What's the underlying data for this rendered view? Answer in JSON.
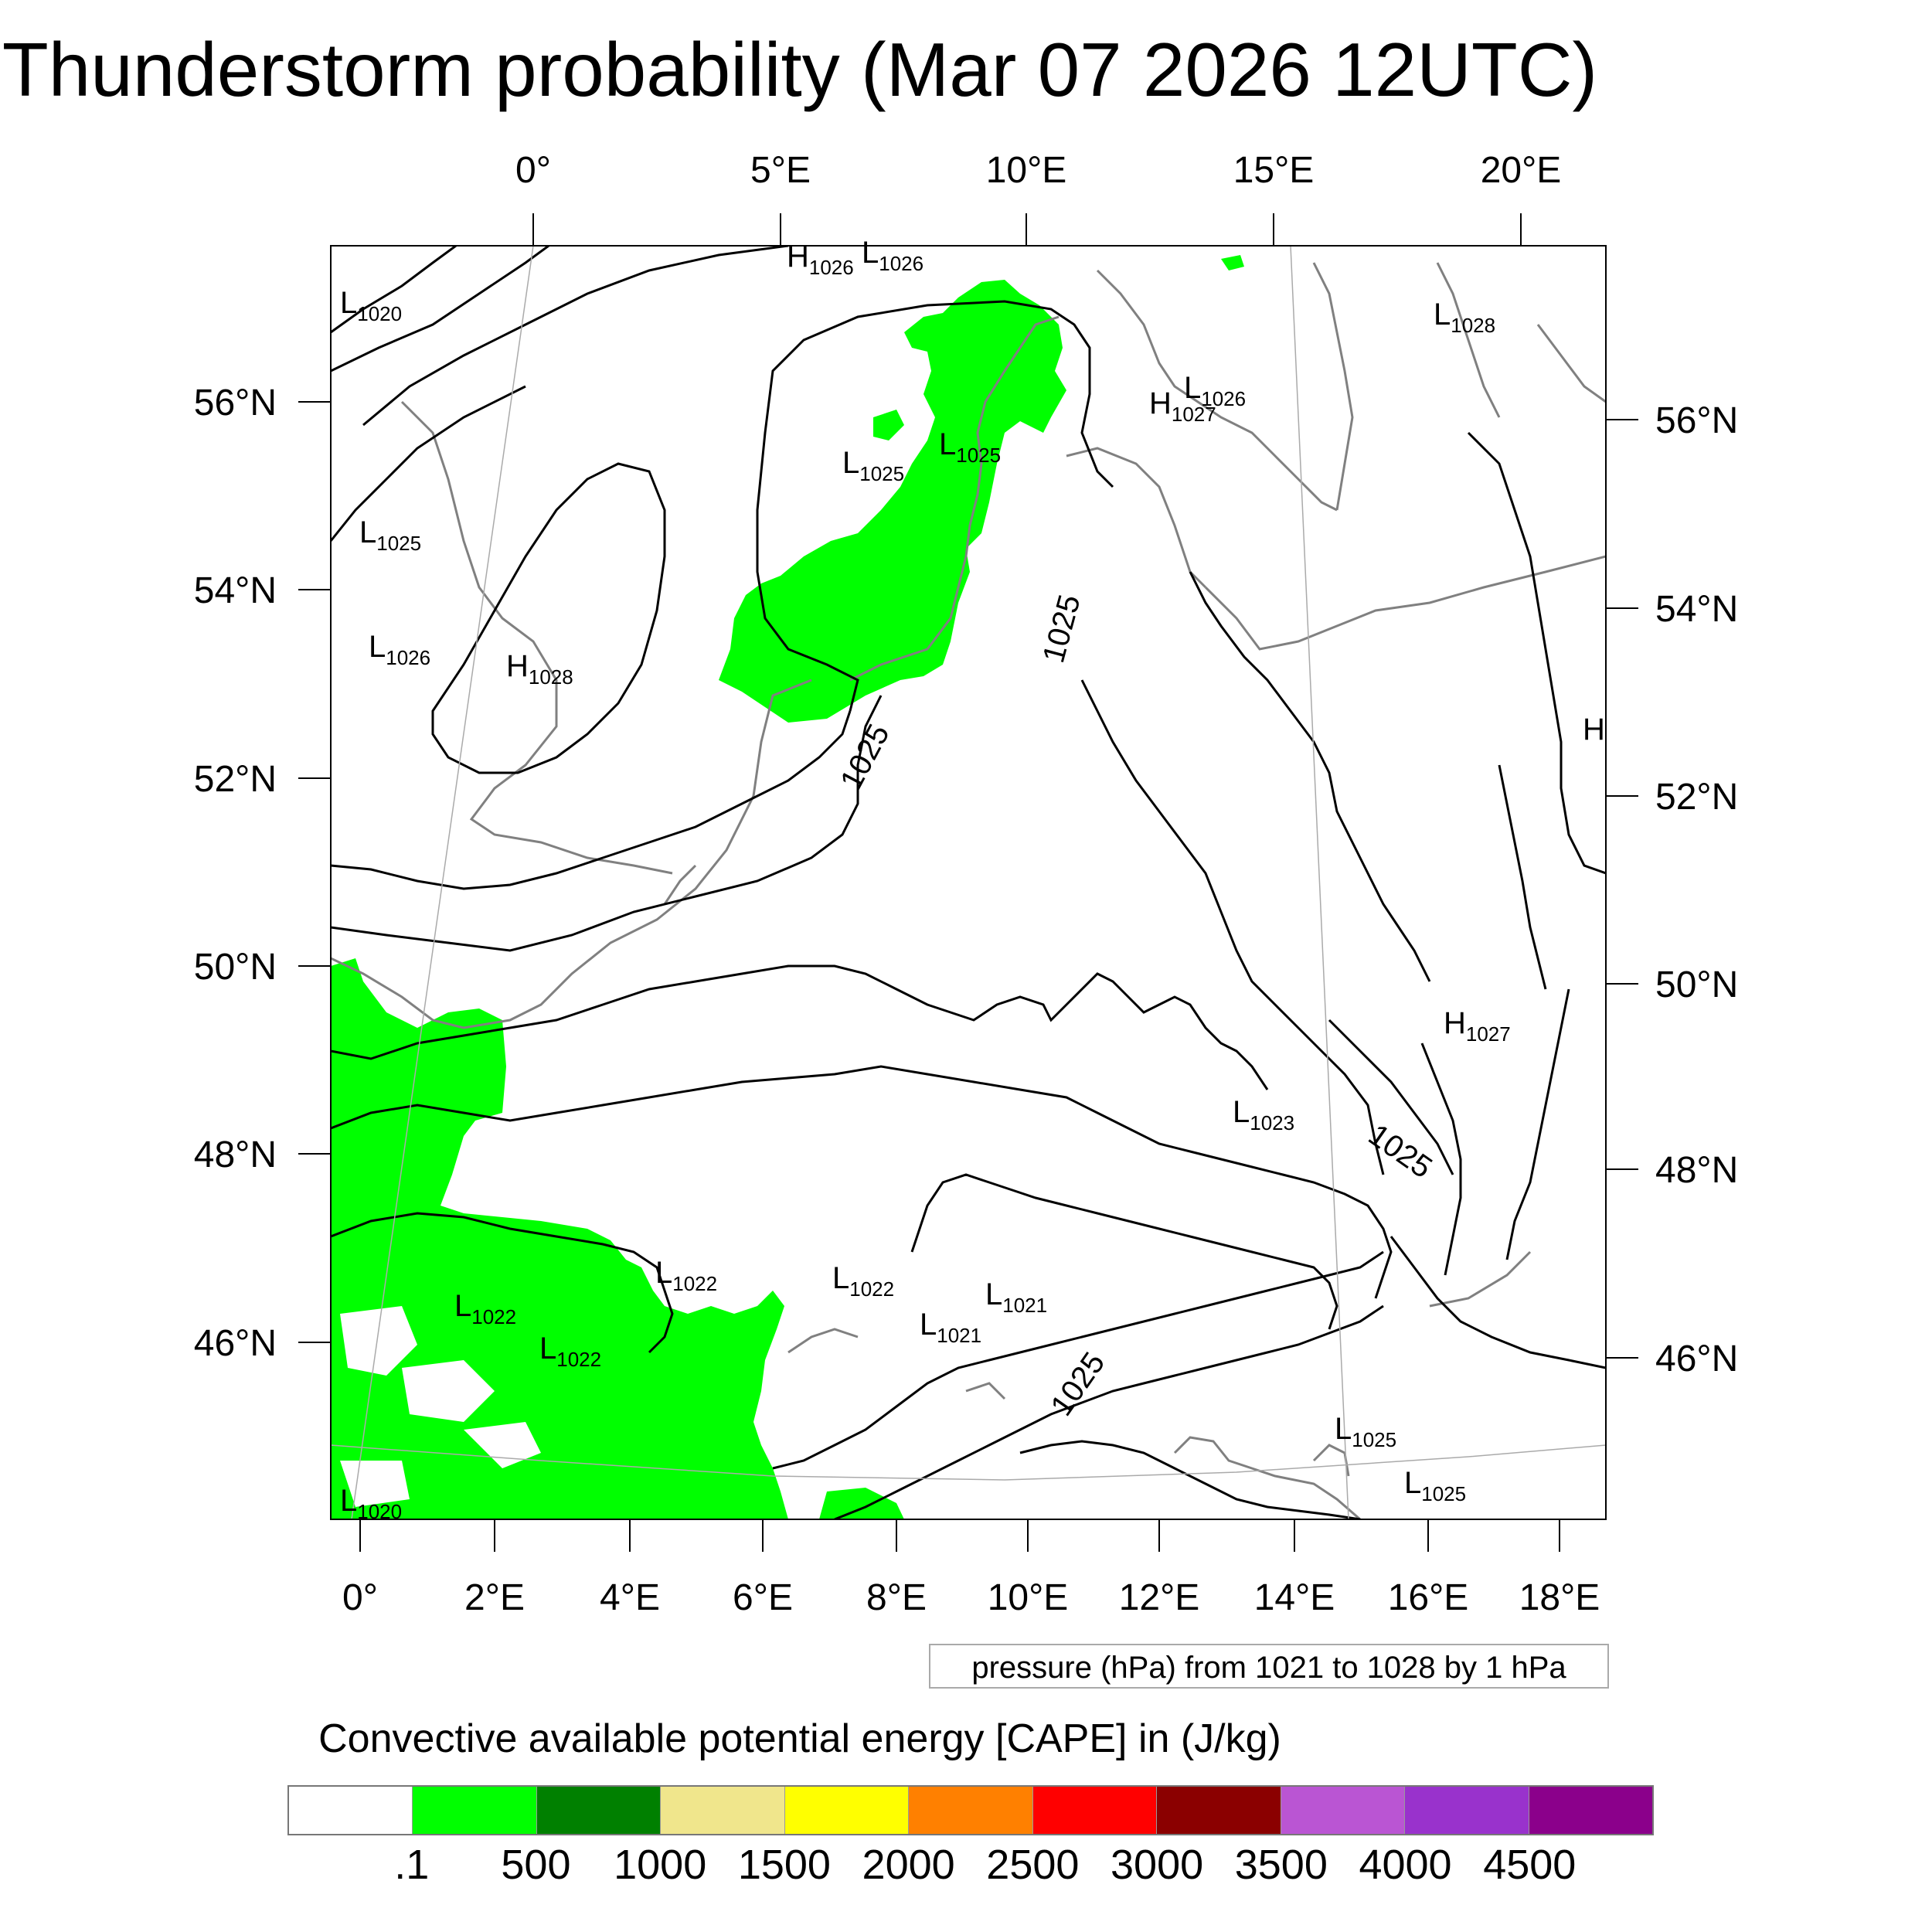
{
  "title": "Thunderstorm probability (Mar 07 2026 12UTC)",
  "axes": {
    "top_lon_labels": [
      "0°",
      "5°E",
      "10°E",
      "15°E",
      "20°E"
    ],
    "left_lat_labels": [
      "56°N",
      "54°N",
      "52°N",
      "50°N",
      "48°N",
      "46°N"
    ],
    "right_lat_labels": [
      "56°N",
      "54°N",
      "52°N",
      "50°N",
      "48°N",
      "46°N"
    ],
    "bottom_lon_labels": [
      "0°",
      "2°E",
      "4°E",
      "6°E",
      "8°E",
      "10°E",
      "12°E",
      "14°E",
      "16°E",
      "18°E"
    ]
  },
  "pressure_labels": [
    {
      "type": "L",
      "value": "1020"
    },
    {
      "type": "H",
      "value": "1026"
    },
    {
      "type": "L",
      "value": "1026"
    },
    {
      "type": "L",
      "value": "1028"
    },
    {
      "type": "H",
      "value": "1027"
    },
    {
      "type": "L",
      "value": "1026"
    },
    {
      "type": "L",
      "value": "1025"
    },
    {
      "type": "L",
      "value": "1025"
    },
    {
      "type": "L",
      "value": "1025"
    },
    {
      "type": "L",
      "value": "1026"
    },
    {
      "type": "H",
      "value": "1028"
    },
    {
      "type": "H",
      "value": ""
    },
    {
      "type": "H",
      "value": "1027"
    },
    {
      "type": "L",
      "value": "1023"
    },
    {
      "type": "L",
      "value": "1022"
    },
    {
      "type": "L",
      "value": "1022"
    },
    {
      "type": "L",
      "value": "1022"
    },
    {
      "type": "L",
      "value": "1022"
    },
    {
      "type": "L",
      "value": "1021"
    },
    {
      "type": "L",
      "value": "1021"
    },
    {
      "type": "L",
      "value": "1025"
    },
    {
      "type": "L",
      "value": "1025"
    },
    {
      "type": "L",
      "value": "1020"
    }
  ],
  "contour_labels": [
    "1025",
    "1025",
    "1025",
    "1025"
  ],
  "info_box": "pressure (hPa) from 1021 to 1028 by 1 hPa",
  "colorbar": {
    "title": "Convective available potential energy [CAPE] in (J/kg)",
    "colors": [
      "#ffffff",
      "#00ff00",
      "#008000",
      "#f0e68c",
      "#ffff00",
      "#ff8000",
      "#ff0000",
      "#8b0000",
      "#ba55d3",
      "#9932cc",
      "#8b008b"
    ],
    "labels": [
      ".1",
      "500",
      "1000",
      "1500",
      "2000",
      "2500",
      "3000",
      "3500",
      "4000",
      "4500"
    ]
  }
}
